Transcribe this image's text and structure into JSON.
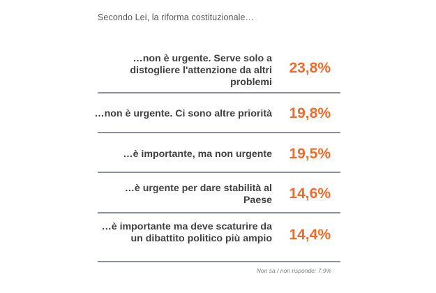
{
  "chart_data": {
    "type": "table",
    "title": "Secondo Lei, la riforma costituzionale…",
    "categories": [
      "…non è urgente. Serve solo a distogliere l'attenzione da altri problemi",
      "…non è urgente. Ci sono altre priorità",
      "…è importante, ma non urgente",
      "…è urgente per dare stabilità al Paese",
      "…è importante ma deve scaturire da un dibattito politico più ampio"
    ],
    "values": [
      23.8,
      19.8,
      19.5,
      14.6,
      14.4
    ],
    "rows": [
      {
        "lines": [
          "…non è urgente. Serve solo a",
          "distogliere l'attenzione da altri",
          "problemi"
        ],
        "value_label": "23,8%"
      },
      {
        "lines": [
          "…non è urgente. Ci sono altre priorità"
        ],
        "value_label": "19,8%"
      },
      {
        "lines": [
          "…è importante, ma non urgente"
        ],
        "value_label": "19,5%"
      },
      {
        "lines": [
          "…è urgente per dare stabilità al",
          "Paese"
        ],
        "value_label": "14,6%"
      },
      {
        "lines": [
          "…è importante ma deve scaturire da",
          "un dibattito politico più ampio"
        ],
        "value_label": "14,4%"
      }
    ],
    "footnote": "Non sa / non risponde: 7,9%",
    "value_color": "#f26a2a",
    "divider_color": "#8a8f98"
  }
}
